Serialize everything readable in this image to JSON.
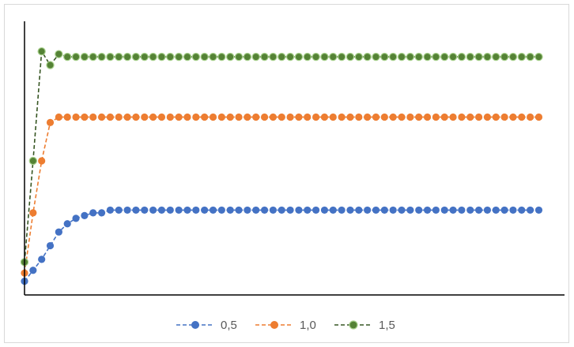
{
  "chart_data": {
    "type": "line",
    "title": "",
    "xlabel": "",
    "ylabel": "",
    "x": [
      0,
      1,
      2,
      3,
      4,
      5,
      6,
      7,
      8,
      9,
      10,
      11,
      12,
      13,
      14,
      15,
      16,
      17,
      18,
      19,
      20,
      21,
      22,
      23,
      24,
      25,
      26,
      27,
      28,
      29,
      30,
      31,
      32,
      33,
      34,
      35,
      36,
      37,
      38,
      39,
      40,
      41,
      42,
      43,
      44,
      45,
      46,
      47,
      48,
      49,
      50,
      51,
      52,
      53,
      54,
      55,
      56,
      57,
      58,
      59,
      60
    ],
    "xlim": [
      0,
      63
    ],
    "ylim": [
      0,
      1.0
    ],
    "grid": false,
    "legend_position": "bottom",
    "series": [
      {
        "name": "0,5",
        "color": "#4472C4",
        "line_style": "dashed",
        "marker": "circle",
        "values": [
          0.05,
          0.09,
          0.13,
          0.18,
          0.23,
          0.26,
          0.28,
          0.29,
          0.3,
          0.3,
          0.31,
          0.31,
          0.31,
          0.31,
          0.31,
          0.31,
          0.31,
          0.31,
          0.31,
          0.31,
          0.31,
          0.31,
          0.31,
          0.31,
          0.31,
          0.31,
          0.31,
          0.31,
          0.31,
          0.31,
          0.31,
          0.31,
          0.31,
          0.31,
          0.31,
          0.31,
          0.31,
          0.31,
          0.31,
          0.31,
          0.31,
          0.31,
          0.31,
          0.31,
          0.31,
          0.31,
          0.31,
          0.31,
          0.31,
          0.31,
          0.31,
          0.31,
          0.31,
          0.31,
          0.31,
          0.31,
          0.31,
          0.31,
          0.31,
          0.31,
          0.31
        ]
      },
      {
        "name": "1,0",
        "color": "#ED7D31",
        "line_style": "dashed",
        "marker": "circle",
        "values": [
          0.08,
          0.3,
          0.49,
          0.63,
          0.65,
          0.65,
          0.65,
          0.65,
          0.65,
          0.65,
          0.65,
          0.65,
          0.65,
          0.65,
          0.65,
          0.65,
          0.65,
          0.65,
          0.65,
          0.65,
          0.65,
          0.65,
          0.65,
          0.65,
          0.65,
          0.65,
          0.65,
          0.65,
          0.65,
          0.65,
          0.65,
          0.65,
          0.65,
          0.65,
          0.65,
          0.65,
          0.65,
          0.65,
          0.65,
          0.65,
          0.65,
          0.65,
          0.65,
          0.65,
          0.65,
          0.65,
          0.65,
          0.65,
          0.65,
          0.65,
          0.65,
          0.65,
          0.65,
          0.65,
          0.65,
          0.65,
          0.65,
          0.65,
          0.65,
          0.65,
          0.65
        ]
      },
      {
        "name": "1,5",
        "color": "#375623",
        "marker_fill": "#548235",
        "marker_edge": "#A9D18E",
        "line_style": "dashed",
        "marker": "circle",
        "values": [
          0.12,
          0.49,
          0.89,
          0.84,
          0.88,
          0.87,
          0.87,
          0.87,
          0.87,
          0.87,
          0.87,
          0.87,
          0.87,
          0.87,
          0.87,
          0.87,
          0.87,
          0.87,
          0.87,
          0.87,
          0.87,
          0.87,
          0.87,
          0.87,
          0.87,
          0.87,
          0.87,
          0.87,
          0.87,
          0.87,
          0.87,
          0.87,
          0.87,
          0.87,
          0.87,
          0.87,
          0.87,
          0.87,
          0.87,
          0.87,
          0.87,
          0.87,
          0.87,
          0.87,
          0.87,
          0.87,
          0.87,
          0.87,
          0.87,
          0.87,
          0.87,
          0.87,
          0.87,
          0.87,
          0.87,
          0.87,
          0.87,
          0.87,
          0.87,
          0.87,
          0.87
        ]
      }
    ]
  }
}
